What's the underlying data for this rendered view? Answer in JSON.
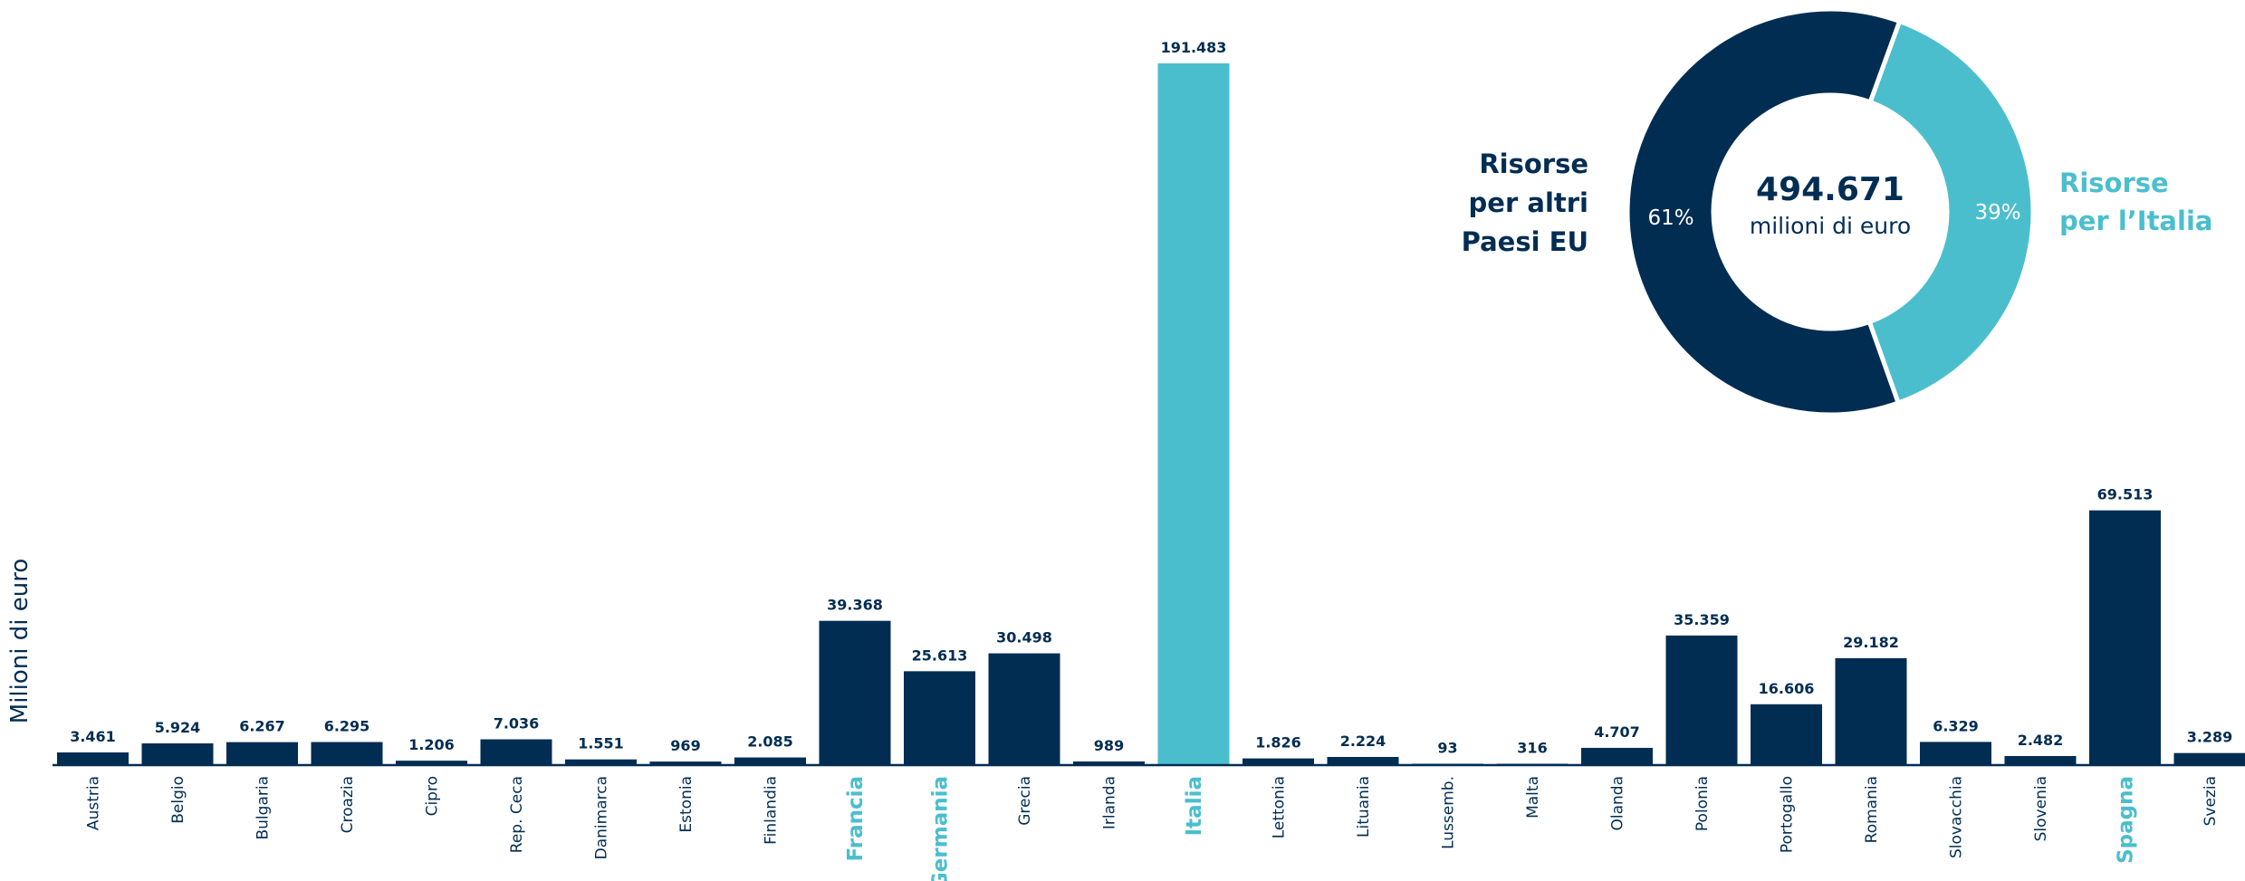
{
  "colors": {
    "dark": "#022d53",
    "highlight": "#4bbece",
    "white": "#ffffff"
  },
  "chart_data": [
    {
      "type": "bar",
      "ylabel": "Milioni di euro",
      "ylim": [
        0,
        200000
      ],
      "grid": false,
      "categories": [
        "Austria",
        "Belgio",
        "Bulgaria",
        "Croazia",
        "Cipro",
        "Rep. Ceca",
        "Danimarca",
        "Estonia",
        "Finlandia",
        "Francia",
        "Germania",
        "Grecia",
        "Irlanda",
        "Italia",
        "Lettonia",
        "Lituania",
        "Lussemb.",
        "Malta",
        "Olanda",
        "Polonia",
        "Portogallo",
        "Romania",
        "Slovacchia",
        "Slovenia",
        "Spagna",
        "Svezia"
      ],
      "values": [
        3461,
        5924,
        6267,
        6295,
        1206,
        7036,
        1551,
        969,
        2085,
        39368,
        25613,
        30498,
        989,
        191483,
        1826,
        2224,
        93,
        316,
        4707,
        35359,
        16606,
        29182,
        6329,
        2482,
        69513,
        3289
      ],
      "value_labels": [
        "3.461",
        "5.924",
        "6.267",
        "6.295",
        "1.206",
        "7.036",
        "1.551",
        "969",
        "2.085",
        "39.368",
        "25.613",
        "30.498",
        "989",
        "191.483",
        "1.826",
        "2.224",
        "93",
        "316",
        "4.707",
        "35.359",
        "16.606",
        "29.182",
        "6.329",
        "2.482",
        "69.513",
        "3.289"
      ],
      "highlighted_bars": [
        "Italia"
      ],
      "highlighted_labels": [
        "Francia",
        "Germania",
        "Italia",
        "Spagna"
      ]
    },
    {
      "type": "pie",
      "center_value": "494.671",
      "center_unit": "milioni di euro",
      "slices": [
        {
          "name": "Risorse per l’Italia",
          "label_lines": [
            "Risorse",
            "per l’Italia"
          ],
          "value": 39,
          "percent_label": "39%",
          "color": "#4bbece"
        },
        {
          "name": "Risorse per altri Paesi EU",
          "label_lines": [
            "Risorse",
            "per altri",
            "Paesi EU"
          ],
          "value": 61,
          "percent_label": "61%",
          "color": "#022d53"
        }
      ]
    }
  ]
}
